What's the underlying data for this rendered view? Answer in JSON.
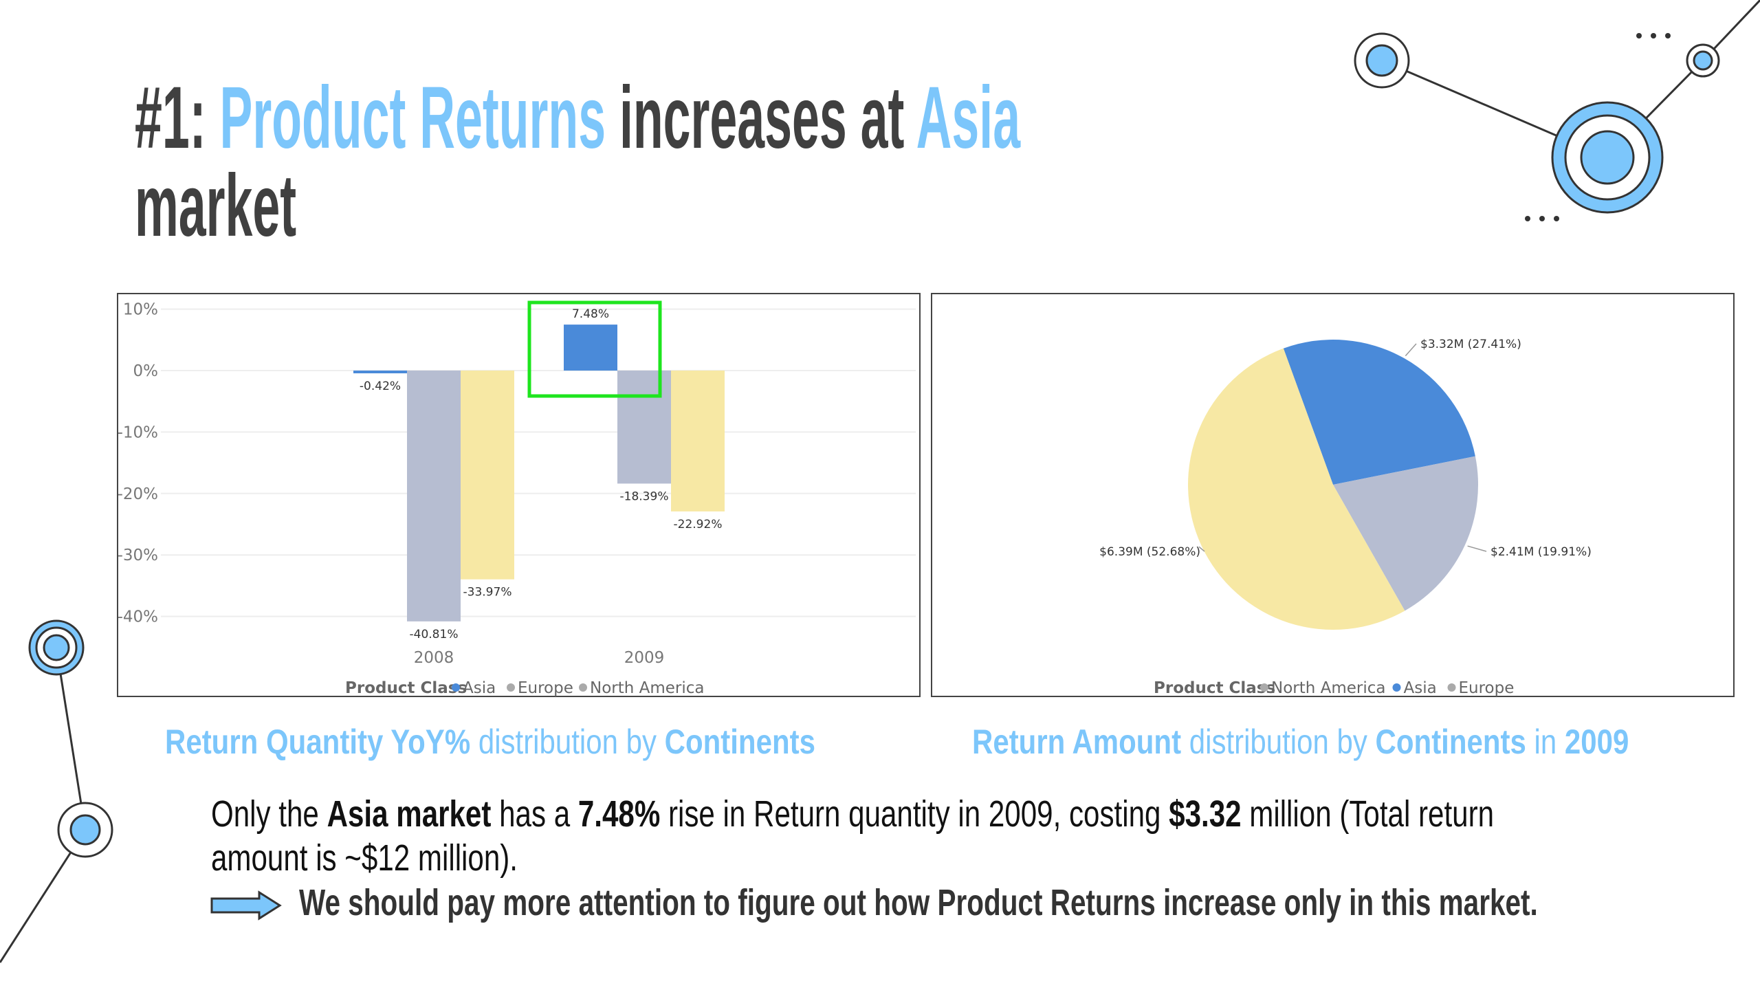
{
  "title": {
    "prefix": "#1: ",
    "highlight1": "Product Returns",
    "middle": " increases at ",
    "highlight2": "Asia",
    "line2": "market"
  },
  "colors": {
    "accent": "#7cc6fb",
    "asia": "#4a8ad9",
    "europe": "#b6bdd1",
    "north_america": "#f7e8a4",
    "highlight_box": "#1ee51e",
    "text": "#404040"
  },
  "chart_data": [
    {
      "type": "bar",
      "title": "Return Quantity YoY% distribution by Continents",
      "categories": [
        "2008",
        "2009"
      ],
      "series": [
        {
          "name": "Asia",
          "values": [
            -0.42,
            7.48
          ],
          "labels": [
            "-0.42%",
            "7.48%"
          ]
        },
        {
          "name": "Europe",
          "values": [
            -40.81,
            -18.39
          ],
          "labels": [
            "-40.81%",
            "-18.39%"
          ]
        },
        {
          "name": "North America",
          "values": [
            -33.97,
            -22.92
          ],
          "labels": [
            "-33.97%",
            "-22.92%"
          ]
        }
      ],
      "yticks": [
        "10%",
        "0%",
        "-10%",
        "-20%",
        "-30%",
        "-40%"
      ],
      "ylim": [
        -45,
        10
      ],
      "grid": true,
      "legend": {
        "title": "Product Class",
        "items": [
          "Asia",
          "Europe",
          "North America"
        ],
        "placement": "bottom"
      },
      "annotation": "highlight box around Asia 2009"
    },
    {
      "type": "pie",
      "title": "Return Amount distribution by Continents in 2009",
      "slices": [
        {
          "name": "Asia",
          "value": 3.32,
          "percent": 27.41,
          "label": "$3.32M (27.41%)"
        },
        {
          "name": "Europe",
          "value": 2.41,
          "percent": 19.91,
          "label": "$2.41M (19.91%)"
        },
        {
          "name": "North America",
          "value": 6.39,
          "percent": 52.68,
          "label": "$6.39M (52.68%)"
        }
      ],
      "legend": {
        "title": "Product Class",
        "items": [
          "North America",
          "Asia",
          "Europe"
        ],
        "placement": "bottom"
      }
    }
  ],
  "captions": {
    "left": {
      "b1": "Return Quantity YoY%",
      "t1": " distribution by ",
      "b2": "Continents"
    },
    "right": {
      "b1": "Return Amount",
      "t1": " distribution by ",
      "b2": "Continents",
      "t2": " in ",
      "b3": "2009"
    }
  },
  "body": {
    "s1": "Only the ",
    "b1": "Asia market",
    "s2": " has a ",
    "b2": "7.48%",
    "s3": " rise in Return quantity in 2009, costing ",
    "b3": "$3.32",
    "s4": " million (Total return",
    "line2": "amount is ~$12 million).",
    "conclusion": "We should pay more attention to figure out how Product Returns increase only in this market."
  }
}
